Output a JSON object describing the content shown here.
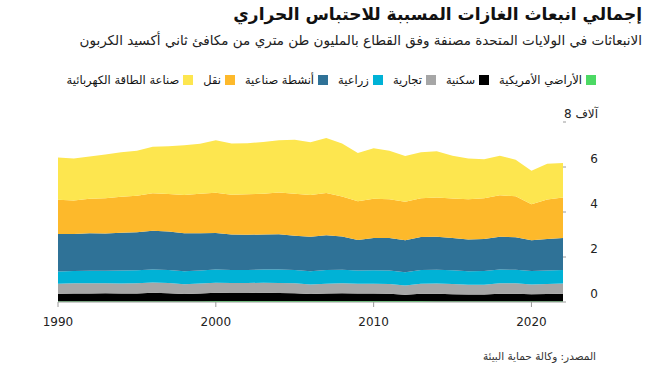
{
  "chart_data": {
    "type": "area",
    "stacked": true,
    "title": "إجمالي انبعاث الغازات المسببة للاحتباس الحراري",
    "subtitle": "الانبعاثات في الولايات المتحدة مصنفة وفق القطاع بالمليون طن متري من مكافئ ثاني أكسيد الكربون",
    "source": "المصدر: وكالة حماية البيئة",
    "x": [
      1990,
      1991,
      1992,
      1993,
      1994,
      1995,
      1996,
      1997,
      1998,
      1999,
      2000,
      2001,
      2002,
      2003,
      2004,
      2005,
      2006,
      2007,
      2008,
      2009,
      2010,
      2011,
      2012,
      2013,
      2014,
      2015,
      2016,
      2017,
      2018,
      2019,
      2020,
      2021,
      2022
    ],
    "xlim": [
      1990,
      2022
    ],
    "xticks": [
      1990,
      2000,
      2010,
      2020
    ],
    "ylim": [
      0,
      8
    ],
    "yticks": [
      0,
      2,
      4,
      6,
      {
        "value": 8,
        "label": "8 آلاف"
      }
    ],
    "grid": false,
    "legend": "top",
    "series": [
      {
        "name": "الأراضي الأمريكية",
        "color": "#4cd964",
        "values": [
          0.03,
          0.03,
          0.03,
          0.03,
          0.03,
          0.03,
          0.03,
          0.03,
          0.03,
          0.03,
          0.04,
          0.04,
          0.04,
          0.04,
          0.04,
          0.04,
          0.04,
          0.04,
          0.04,
          0.04,
          0.04,
          0.04,
          0.04,
          0.04,
          0.03,
          0.03,
          0.03,
          0.03,
          0.03,
          0.03,
          0.03,
          0.03,
          0.03
        ]
      },
      {
        "name": "سكنية",
        "color": "#000000",
        "values": [
          0.34,
          0.35,
          0.35,
          0.36,
          0.35,
          0.35,
          0.38,
          0.36,
          0.33,
          0.35,
          0.37,
          0.36,
          0.36,
          0.37,
          0.36,
          0.35,
          0.32,
          0.34,
          0.35,
          0.34,
          0.34,
          0.33,
          0.28,
          0.33,
          0.34,
          0.32,
          0.3,
          0.3,
          0.34,
          0.34,
          0.32,
          0.33,
          0.34
        ]
      },
      {
        "name": "تجارية",
        "color": "#a6a6a6",
        "values": [
          0.44,
          0.45,
          0.45,
          0.44,
          0.44,
          0.45,
          0.46,
          0.45,
          0.43,
          0.44,
          0.45,
          0.44,
          0.44,
          0.45,
          0.45,
          0.44,
          0.42,
          0.43,
          0.44,
          0.43,
          0.43,
          0.43,
          0.41,
          0.44,
          0.45,
          0.45,
          0.44,
          0.44,
          0.46,
          0.46,
          0.43,
          0.44,
          0.45
        ]
      },
      {
        "name": "زراعية",
        "color": "#00b2d6",
        "values": [
          0.55,
          0.55,
          0.56,
          0.56,
          0.58,
          0.58,
          0.58,
          0.58,
          0.58,
          0.58,
          0.58,
          0.58,
          0.58,
          0.58,
          0.59,
          0.59,
          0.59,
          0.61,
          0.6,
          0.59,
          0.6,
          0.6,
          0.59,
          0.61,
          0.61,
          0.61,
          0.6,
          0.61,
          0.61,
          0.6,
          0.6,
          0.6,
          0.6
        ]
      },
      {
        "name": "أنشطة صناعية",
        "color": "#2f7297",
        "values": [
          1.66,
          1.64,
          1.67,
          1.66,
          1.68,
          1.69,
          1.72,
          1.71,
          1.69,
          1.66,
          1.63,
          1.58,
          1.57,
          1.56,
          1.57,
          1.52,
          1.53,
          1.55,
          1.48,
          1.36,
          1.43,
          1.44,
          1.43,
          1.47,
          1.47,
          1.43,
          1.41,
          1.42,
          1.46,
          1.45,
          1.37,
          1.4,
          1.42
        ]
      },
      {
        "name": "نقل",
        "color": "#fdb92b",
        "values": [
          1.52,
          1.49,
          1.53,
          1.56,
          1.6,
          1.62,
          1.66,
          1.67,
          1.7,
          1.75,
          1.79,
          1.77,
          1.8,
          1.81,
          1.86,
          1.87,
          1.86,
          1.87,
          1.78,
          1.72,
          1.75,
          1.73,
          1.71,
          1.72,
          1.74,
          1.76,
          1.79,
          1.81,
          1.84,
          1.82,
          1.6,
          1.76,
          1.8
        ]
      },
      {
        "name": "صناعة الطاقة الكهربائية",
        "color": "#fde64f",
        "values": [
          1.88,
          1.87,
          1.88,
          1.95,
          1.98,
          2.0,
          2.07,
          2.12,
          2.21,
          2.22,
          2.33,
          2.27,
          2.27,
          2.3,
          2.32,
          2.4,
          2.34,
          2.45,
          2.35,
          2.14,
          2.24,
          2.15,
          2.03,
          2.05,
          2.06,
          1.9,
          1.81,
          1.73,
          1.76,
          1.62,
          1.48,
          1.59,
          1.54
        ]
      }
    ]
  }
}
